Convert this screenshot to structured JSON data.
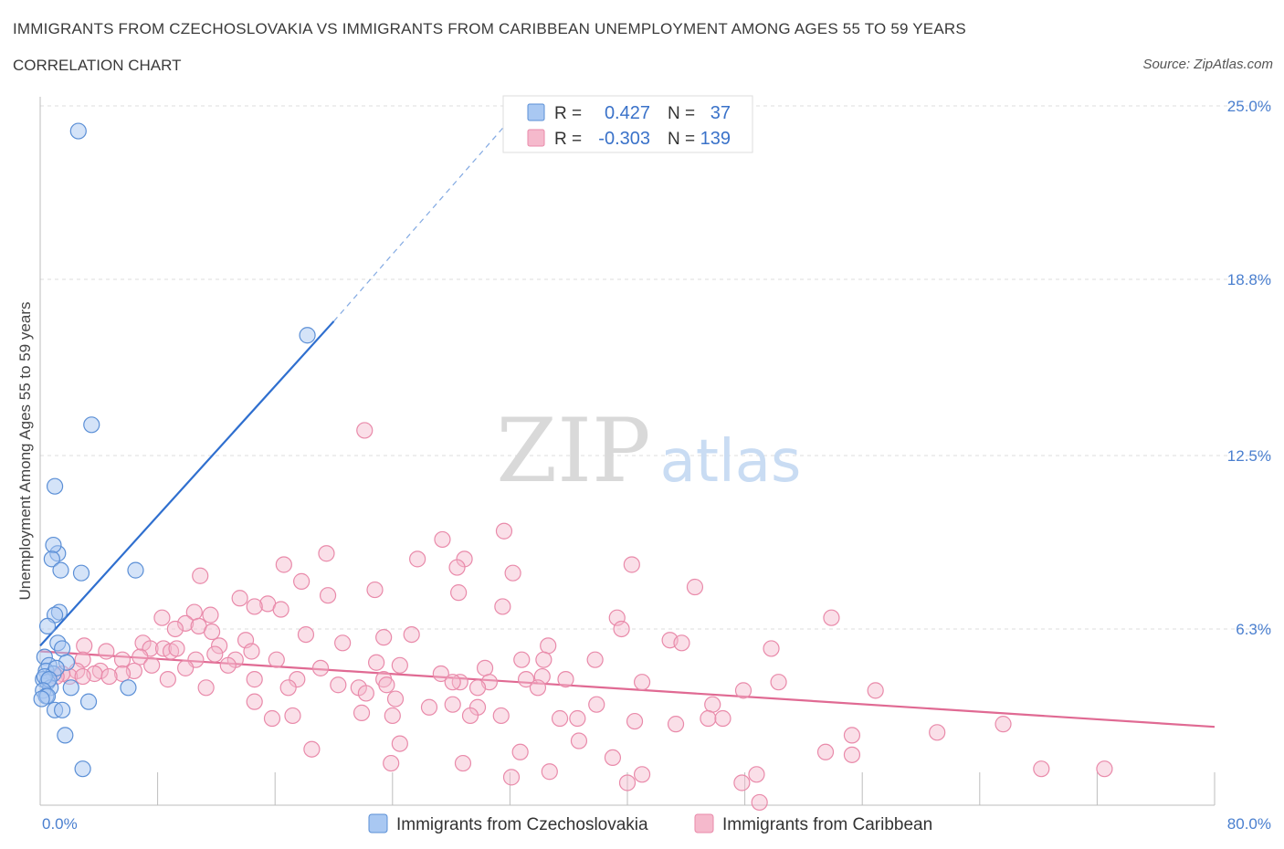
{
  "title": "IMMIGRANTS FROM CZECHOSLOVAKIA VS IMMIGRANTS FROM CARIBBEAN UNEMPLOYMENT AMONG AGES 55 TO 59 YEARS",
  "subtitle": "CORRELATION CHART",
  "source": "Source: ZipAtlas.com",
  "watermark": {
    "zip": "ZIP",
    "atlas": "atlas"
  },
  "colors": {
    "blue_fill": "#a9c8f2",
    "blue_stroke": "#5b8fd6",
    "blue_line": "#2f6fcf",
    "pink_fill": "#f5b9cc",
    "pink_stroke": "#e98aaa",
    "pink_line": "#e06a93",
    "grid": "#dcdcdc",
    "tick_text": "#4a7fcf"
  },
  "legend": {
    "r_label": "R =",
    "n_label": "N =",
    "series": [
      {
        "r": "0.427",
        "n": "37"
      },
      {
        "r": "-0.303",
        "n": "139"
      }
    ]
  },
  "chart_data": {
    "type": "scatter",
    "xlabel": "",
    "ylabel": "Unemployment Among Ages 55 to 59 years",
    "xlim": [
      0,
      80
    ],
    "ylim": [
      0,
      25.0
    ],
    "x_tick_labels": [
      "0.0%",
      "80.0%"
    ],
    "y_ticks": [
      6.3,
      12.5,
      18.8,
      25.0
    ],
    "y_tick_labels": [
      "6.3%",
      "12.5%",
      "18.8%",
      "25.0%"
    ],
    "grid": true,
    "legend_position": "top-center",
    "series": [
      {
        "name": "Immigrants from Czechoslovakia",
        "trend": {
          "x": [
            0,
            20
          ],
          "y": [
            5.7,
            17.3
          ],
          "dashed_to": [
            32,
            24.5
          ]
        },
        "points": [
          [
            2.6,
            24.1
          ],
          [
            18.2,
            16.8
          ],
          [
            3.5,
            13.6
          ],
          [
            1.0,
            11.4
          ],
          [
            1.2,
            9.0
          ],
          [
            0.9,
            9.3
          ],
          [
            0.8,
            8.8
          ],
          [
            1.4,
            8.4
          ],
          [
            2.8,
            8.3
          ],
          [
            6.5,
            8.4
          ],
          [
            1.3,
            6.9
          ],
          [
            1.0,
            6.8
          ],
          [
            0.5,
            6.4
          ],
          [
            1.2,
            5.8
          ],
          [
            1.5,
            5.6
          ],
          [
            0.3,
            5.3
          ],
          [
            0.6,
            5.0
          ],
          [
            1.8,
            5.1
          ],
          [
            0.4,
            4.8
          ],
          [
            0.9,
            4.7
          ],
          [
            1.1,
            4.9
          ],
          [
            0.2,
            4.5
          ],
          [
            0.5,
            4.4
          ],
          [
            0.7,
            4.2
          ],
          [
            0.3,
            4.6
          ],
          [
            0.6,
            4.5
          ],
          [
            0.2,
            4.1
          ],
          [
            0.4,
            3.9
          ],
          [
            2.1,
            4.2
          ],
          [
            6.0,
            4.2
          ],
          [
            0.5,
            3.9
          ],
          [
            3.3,
            3.7
          ],
          [
            1.0,
            3.4
          ],
          [
            1.5,
            3.4
          ],
          [
            1.7,
            2.5
          ],
          [
            2.9,
            1.3
          ],
          [
            0.1,
            3.8
          ]
        ]
      },
      {
        "name": "Immigrants from Caribbean",
        "trend": {
          "x": [
            0,
            80
          ],
          "y": [
            5.5,
            2.8
          ]
        },
        "points": [
          [
            22.1,
            13.4
          ],
          [
            31.6,
            9.8
          ],
          [
            27.4,
            9.5
          ],
          [
            25.7,
            8.8
          ],
          [
            28.9,
            8.8
          ],
          [
            19.5,
            9.0
          ],
          [
            16.6,
            8.6
          ],
          [
            40.3,
            8.6
          ],
          [
            32.2,
            8.3
          ],
          [
            28.4,
            8.5
          ],
          [
            10.9,
            8.2
          ],
          [
            17.8,
            8.0
          ],
          [
            44.6,
            7.8
          ],
          [
            22.8,
            7.7
          ],
          [
            28.5,
            7.6
          ],
          [
            19.6,
            7.5
          ],
          [
            13.6,
            7.4
          ],
          [
            15.5,
            7.2
          ],
          [
            16.4,
            7.0
          ],
          [
            31.5,
            7.1
          ],
          [
            14.6,
            7.1
          ],
          [
            11.6,
            6.8
          ],
          [
            10.5,
            6.9
          ],
          [
            8.3,
            6.7
          ],
          [
            39.3,
            6.7
          ],
          [
            53.9,
            6.7
          ],
          [
            9.9,
            6.5
          ],
          [
            10.8,
            6.4
          ],
          [
            9.2,
            6.3
          ],
          [
            11.7,
            6.2
          ],
          [
            39.6,
            6.3
          ],
          [
            18.1,
            6.1
          ],
          [
            25.3,
            6.1
          ],
          [
            23.4,
            6.0
          ],
          [
            42.9,
            5.9
          ],
          [
            14.0,
            5.9
          ],
          [
            20.6,
            5.8
          ],
          [
            7.0,
            5.8
          ],
          [
            7.5,
            5.6
          ],
          [
            43.7,
            5.8
          ],
          [
            12.2,
            5.7
          ],
          [
            8.4,
            5.6
          ],
          [
            49.8,
            5.6
          ],
          [
            34.6,
            5.7
          ],
          [
            3.0,
            5.7
          ],
          [
            4.5,
            5.5
          ],
          [
            8.9,
            5.5
          ],
          [
            9.3,
            5.6
          ],
          [
            14.4,
            5.5
          ],
          [
            11.9,
            5.4
          ],
          [
            6.8,
            5.3
          ],
          [
            5.6,
            5.2
          ],
          [
            10.6,
            5.2
          ],
          [
            13.3,
            5.2
          ],
          [
            2.9,
            5.2
          ],
          [
            16.1,
            5.2
          ],
          [
            22.9,
            5.1
          ],
          [
            32.8,
            5.2
          ],
          [
            34.3,
            5.2
          ],
          [
            37.8,
            5.2
          ],
          [
            24.5,
            5.0
          ],
          [
            12.8,
            5.0
          ],
          [
            7.6,
            5.0
          ],
          [
            19.1,
            4.9
          ],
          [
            4.1,
            4.8
          ],
          [
            6.4,
            4.8
          ],
          [
            9.9,
            4.9
          ],
          [
            30.3,
            4.9
          ],
          [
            2.5,
            4.8
          ],
          [
            3.7,
            4.7
          ],
          [
            5.6,
            4.7
          ],
          [
            27.3,
            4.7
          ],
          [
            34.2,
            4.6
          ],
          [
            2.0,
            4.6
          ],
          [
            1.5,
            4.7
          ],
          [
            2.9,
            4.6
          ],
          [
            1.1,
            4.6
          ],
          [
            4.7,
            4.6
          ],
          [
            14.6,
            4.5
          ],
          [
            17.5,
            4.5
          ],
          [
            23.4,
            4.5
          ],
          [
            8.7,
            4.5
          ],
          [
            33.1,
            4.5
          ],
          [
            35.8,
            4.5
          ],
          [
            28.6,
            4.4
          ],
          [
            30.6,
            4.4
          ],
          [
            50.3,
            4.4
          ],
          [
            41.0,
            4.4
          ],
          [
            28.1,
            4.4
          ],
          [
            20.3,
            4.3
          ],
          [
            23.6,
            4.3
          ],
          [
            21.7,
            4.2
          ],
          [
            16.9,
            4.2
          ],
          [
            11.3,
            4.2
          ],
          [
            29.8,
            4.2
          ],
          [
            33.9,
            4.2
          ],
          [
            47.9,
            4.1
          ],
          [
            56.9,
            4.1
          ],
          [
            22.2,
            4.0
          ],
          [
            24.2,
            3.8
          ],
          [
            14.6,
            3.7
          ],
          [
            28.1,
            3.6
          ],
          [
            26.5,
            3.5
          ],
          [
            37.9,
            3.6
          ],
          [
            45.8,
            3.6
          ],
          [
            29.8,
            3.5
          ],
          [
            21.9,
            3.3
          ],
          [
            17.2,
            3.2
          ],
          [
            15.8,
            3.1
          ],
          [
            24.0,
            3.2
          ],
          [
            29.3,
            3.2
          ],
          [
            31.4,
            3.2
          ],
          [
            35.4,
            3.1
          ],
          [
            36.6,
            3.1
          ],
          [
            43.3,
            2.9
          ],
          [
            45.5,
            3.1
          ],
          [
            46.5,
            3.1
          ],
          [
            40.5,
            3.0
          ],
          [
            55.3,
            2.5
          ],
          [
            36.7,
            2.3
          ],
          [
            24.5,
            2.2
          ],
          [
            32.7,
            1.9
          ],
          [
            18.5,
            2.0
          ],
          [
            39.0,
            1.7
          ],
          [
            23.9,
            1.5
          ],
          [
            55.3,
            1.8
          ],
          [
            53.5,
            1.9
          ],
          [
            61.1,
            2.6
          ],
          [
            41.0,
            1.1
          ],
          [
            48.8,
            1.1
          ],
          [
            47.8,
            0.8
          ],
          [
            68.2,
            1.3
          ],
          [
            72.5,
            1.3
          ],
          [
            28.8,
            1.5
          ],
          [
            32.1,
            1.0
          ],
          [
            34.7,
            1.2
          ],
          [
            40.0,
            0.8
          ],
          [
            49.0,
            0.1
          ],
          [
            65.6,
            2.9
          ]
        ]
      }
    ]
  },
  "bottom_legend": [
    "Immigrants from Czechoslovakia",
    "Immigrants from Caribbean"
  ]
}
